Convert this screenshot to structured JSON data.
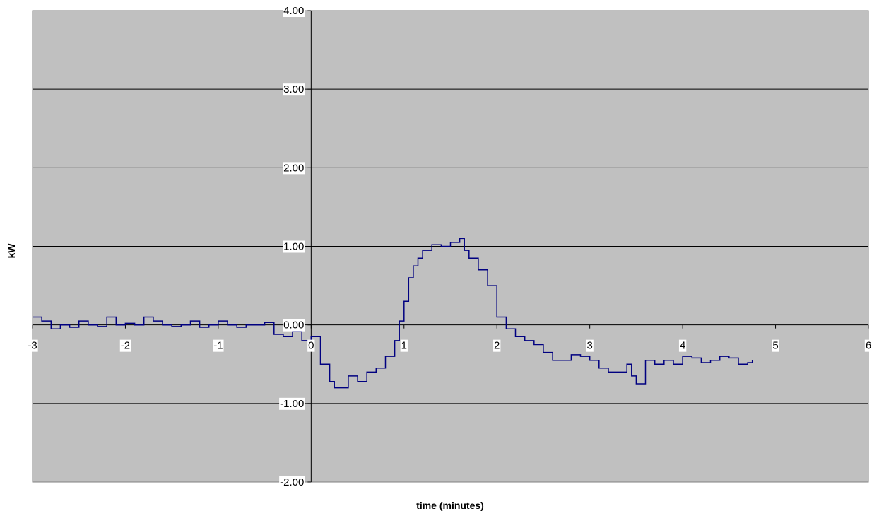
{
  "chart_data": {
    "type": "line",
    "title": "",
    "xlabel": "time (minutes)",
    "ylabel": "kW",
    "xlim": [
      -3,
      6
    ],
    "ylim": [
      -2,
      4
    ],
    "grid": "horizontal",
    "legend": "none",
    "x_ticks": [
      -3,
      -2,
      -1,
      0,
      1,
      2,
      3,
      4,
      5,
      6
    ],
    "x_tick_labels": [
      "-3",
      "-2",
      "-1",
      "0",
      "1",
      "2",
      "3",
      "4",
      "5",
      "6"
    ],
    "y_ticks": [
      4,
      3,
      2,
      1,
      0,
      -1,
      -2
    ],
    "y_tick_labels": [
      "4.00",
      "3.00",
      "2.00",
      "1.00",
      "0.00",
      "-1.00",
      "-2.00"
    ],
    "colors": {
      "plot_background": "#c0c0c0",
      "series_line": "#000080",
      "gridline": "#000000"
    },
    "series": [
      {
        "x": [
          -3.0,
          -2.9,
          -2.8,
          -2.7,
          -2.6,
          -2.5,
          -2.4,
          -2.3,
          -2.2,
          -2.1,
          -2.0,
          -1.9,
          -1.8,
          -1.7,
          -1.6,
          -1.5,
          -1.4,
          -1.3,
          -1.2,
          -1.1,
          -1.0,
          -0.9,
          -0.8,
          -0.7,
          -0.6,
          -0.5,
          -0.4,
          -0.3,
          -0.2,
          -0.1,
          0.0,
          0.1,
          0.2,
          0.25,
          0.3,
          0.4,
          0.5,
          0.6,
          0.7,
          0.8,
          0.9,
          0.95,
          1.0,
          1.05,
          1.1,
          1.15,
          1.2,
          1.3,
          1.4,
          1.5,
          1.6,
          1.65,
          1.7,
          1.8,
          1.9,
          2.0,
          2.1,
          2.2,
          2.3,
          2.4,
          2.5,
          2.6,
          2.7,
          2.8,
          2.9,
          3.0,
          3.1,
          3.2,
          3.3,
          3.4,
          3.45,
          3.5,
          3.6,
          3.7,
          3.8,
          3.9,
          4.0,
          4.1,
          4.2,
          4.3,
          4.4,
          4.5,
          4.6,
          4.7,
          4.75
        ],
        "y": [
          0.1,
          0.05,
          -0.05,
          0.0,
          -0.03,
          0.05,
          0.0,
          -0.02,
          0.1,
          0.0,
          0.02,
          0.0,
          0.1,
          0.05,
          0.0,
          -0.02,
          0.0,
          0.05,
          -0.03,
          0.0,
          0.05,
          0.0,
          -0.03,
          0.0,
          0.0,
          0.03,
          -0.12,
          -0.15,
          -0.08,
          -0.2,
          -0.15,
          -0.5,
          -0.72,
          -0.8,
          -0.8,
          -0.65,
          -0.72,
          -0.6,
          -0.55,
          -0.4,
          -0.2,
          0.05,
          0.3,
          0.6,
          0.75,
          0.85,
          0.95,
          1.02,
          1.0,
          1.05,
          1.1,
          0.95,
          0.85,
          0.7,
          0.5,
          0.1,
          -0.05,
          -0.15,
          -0.2,
          -0.25,
          -0.35,
          -0.45,
          -0.45,
          -0.38,
          -0.4,
          -0.45,
          -0.55,
          -0.6,
          -0.6,
          -0.5,
          -0.65,
          -0.75,
          -0.45,
          -0.5,
          -0.45,
          -0.5,
          -0.4,
          -0.42,
          -0.48,
          -0.45,
          -0.4,
          -0.42,
          -0.5,
          -0.48,
          -0.45
        ]
      }
    ]
  }
}
